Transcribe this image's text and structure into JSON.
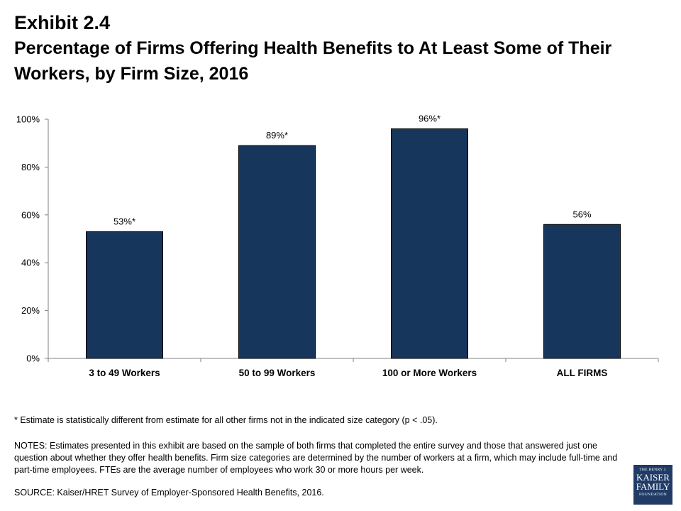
{
  "header": {
    "exhibit": "Exhibit 2.4",
    "title": "Percentage of Firms Offering Health Benefits to At Least Some of Their Workers, by Firm Size, 2016"
  },
  "chart_data": {
    "type": "bar",
    "categories": [
      "3 to 49 Workers",
      "50 to 99 Workers",
      "100 or More Workers",
      "ALL FIRMS"
    ],
    "values": [
      53,
      89,
      96,
      56
    ],
    "data_labels": [
      "53%*",
      "89%*",
      "96%*",
      "56%"
    ],
    "ylim": [
      0,
      100
    ],
    "yticks": [
      "0%",
      "20%",
      "40%",
      "60%",
      "80%",
      "100%"
    ],
    "bar_color": "#16365c",
    "grid": false,
    "legend": "none"
  },
  "footnote": "* Estimate is statistically different from estimate for all other firms not in the indicated size category (p < .05).",
  "notes": "NOTES: Estimates presented in this exhibit are based on the sample of both firms that completed the entire survey and those that answered just one question about whether they offer health benefits. Firm size categories are determined by the number of workers at a firm, which may include full-time and part-time employees. FTEs are the average number of employees who work 30 or more hours per week.",
  "source": "SOURCE:  Kaiser/HRET Survey of Employer-Sponsored Health Benefits, 2016.",
  "logo": {
    "line1": "THE HENRY J.",
    "line2": "KAISER",
    "line3": "FAMILY",
    "line4": "FOUNDATION"
  }
}
